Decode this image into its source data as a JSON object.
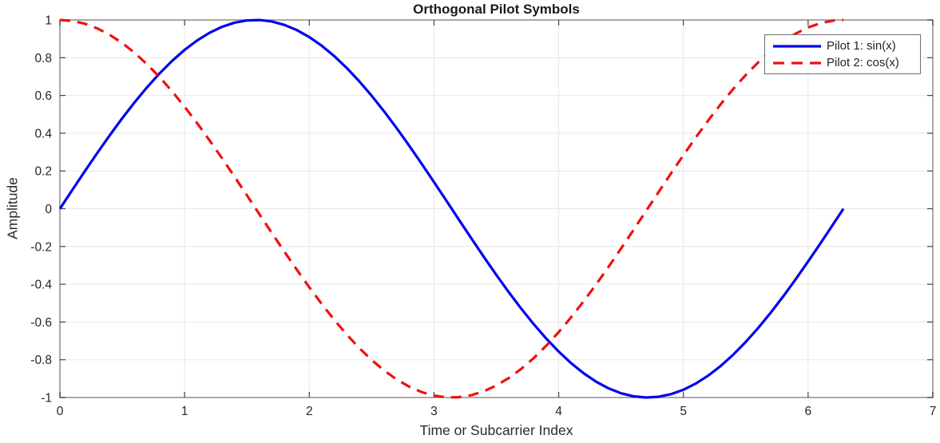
{
  "figure": {
    "title": "Orthogonal Pilot Symbols",
    "xlabel": "Time or Subcarrier Index",
    "ylabel": "Amplitude"
  },
  "colors": {
    "background": "#ffffff",
    "grid": "#e7e7e7",
    "box": "#8c8c8c",
    "tick": "#404040",
    "tick_text": "#262626",
    "series1": "#0000ee",
    "series2": "#ee1111"
  },
  "chart_data": {
    "type": "line",
    "title": "Orthogonal Pilot Symbols",
    "xlabel": "Time or Subcarrier Index",
    "ylabel": "Amplitude",
    "xlim": [
      0,
      7
    ],
    "ylim": [
      -1,
      1
    ],
    "grid": true,
    "legend_position": "top-right",
    "x_ticks": [
      0,
      1,
      2,
      3,
      4,
      5,
      6,
      7
    ],
    "x_tick_labels": [
      "0",
      "1",
      "2",
      "3",
      "4",
      "5",
      "6",
      "7"
    ],
    "y_ticks": [
      -1,
      -0.8,
      -0.6,
      -0.4,
      -0.2,
      0,
      0.2,
      0.4,
      0.6,
      0.8,
      1
    ],
    "y_tick_labels": [
      "-1",
      "-0.8",
      "-0.6",
      "-0.4",
      "-0.2",
      "0",
      "0.2",
      "0.4",
      "0.6",
      "0.8",
      "1"
    ],
    "x": [
      0,
      0.1,
      0.2,
      0.3,
      0.4,
      0.5,
      0.6,
      0.7,
      0.8,
      0.9,
      1,
      1.1,
      1.2,
      1.3,
      1.4,
      1.5,
      1.6,
      1.7,
      1.8,
      1.9,
      2,
      2.1,
      2.2,
      2.3,
      2.4,
      2.5,
      2.6,
      2.7,
      2.8,
      2.9,
      3,
      3.1,
      3.2,
      3.3,
      3.4,
      3.5,
      3.6,
      3.7,
      3.8,
      3.9,
      4,
      4.1,
      4.2,
      4.3,
      4.4,
      4.5,
      4.6,
      4.7,
      4.8,
      4.9,
      5,
      5.1,
      5.2,
      5.3,
      5.4,
      5.5,
      5.6,
      5.7,
      5.8,
      5.9,
      6,
      6.1,
      6.2,
      6.2832
    ],
    "series": [
      {
        "name": "Pilot 1: sin(x)",
        "color": "#0000ee",
        "style": "solid",
        "values": [
          0,
          0.0998,
          0.1987,
          0.2955,
          0.3894,
          0.4794,
          0.5646,
          0.6442,
          0.7174,
          0.7833,
          0.8415,
          0.8912,
          0.932,
          0.9636,
          0.9854,
          0.9975,
          0.9996,
          0.9917,
          0.9738,
          0.9463,
          0.9093,
          0.8632,
          0.8085,
          0.7457,
          0.6755,
          0.5985,
          0.5155,
          0.4274,
          0.335,
          0.2392,
          0.1411,
          0.0416,
          -0.0584,
          -0.1577,
          -0.2555,
          -0.3508,
          -0.4425,
          -0.5298,
          -0.6119,
          -0.6878,
          -0.7568,
          -0.8183,
          -0.8716,
          -0.9162,
          -0.9516,
          -0.9775,
          -0.9937,
          -0.9999,
          -0.9962,
          -0.9825,
          -0.9589,
          -0.9258,
          -0.8835,
          -0.8323,
          -0.7728,
          -0.7055,
          -0.6313,
          -0.5507,
          -0.4646,
          -0.3739,
          -0.2794,
          -0.1822,
          -0.0831,
          0
        ]
      },
      {
        "name": "Pilot 2: cos(x)",
        "color": "#ee1111",
        "style": "dashed",
        "values": [
          1,
          0.995,
          0.9801,
          0.9553,
          0.9211,
          0.8776,
          0.8253,
          0.7648,
          0.6967,
          0.6216,
          0.5403,
          0.4536,
          0.3624,
          0.2675,
          0.17,
          0.0707,
          -0.0292,
          -0.1288,
          -0.2272,
          -0.3233,
          -0.4161,
          -0.5048,
          -0.5885,
          -0.6663,
          -0.7374,
          -0.8011,
          -0.8569,
          -0.9041,
          -0.9422,
          -0.971,
          -0.99,
          -0.9991,
          -0.9983,
          -0.9875,
          -0.9668,
          -0.9365,
          -0.8968,
          -0.8481,
          -0.791,
          -0.7259,
          -0.6536,
          -0.5748,
          -0.4903,
          -0.4008,
          -0.3073,
          -0.2108,
          -0.1122,
          -0.0124,
          0.0875,
          0.1865,
          0.2837,
          0.378,
          0.4685,
          0.5544,
          0.6347,
          0.7087,
          0.7756,
          0.8347,
          0.8855,
          0.9275,
          0.9602,
          0.9833,
          0.9965,
          1
        ]
      }
    ]
  }
}
